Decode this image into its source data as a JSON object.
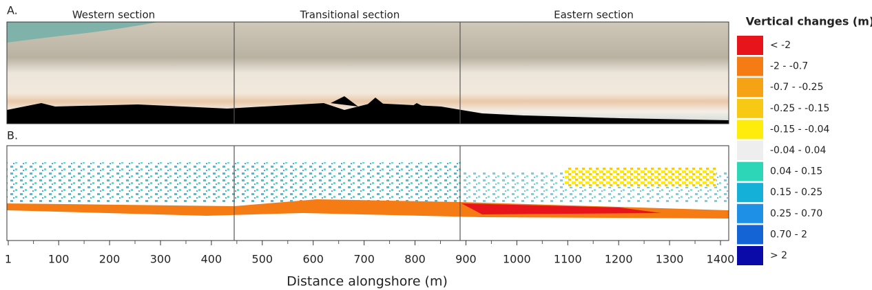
{
  "panels": [
    {
      "label": "A.",
      "sections": [
        "Western section",
        "Transitional section",
        "Eastern section"
      ]
    },
    {
      "label": "B."
    }
  ],
  "axis": {
    "title": "Distance alongshore (m)",
    "ticks": [
      1,
      100,
      200,
      300,
      400,
      500,
      600,
      700,
      800,
      900,
      1000,
      1100,
      1200,
      1300,
      1400
    ]
  },
  "legend": {
    "title": "Vertical changes (m)",
    "items": [
      {
        "label": "< -2",
        "color": "#e8141c"
      },
      {
        "label": "-2 - -0.7",
        "color": "#f57c14"
      },
      {
        "label": "-0.7 - -0.25",
        "color": "#f5a314"
      },
      {
        "label": "-0.25 - -0.15",
        "color": "#f7c814"
      },
      {
        "label": "-0.15 - -0.04",
        "color": "#fdec0c"
      },
      {
        "label": "-0.04 - 0.04",
        "color": "#eeeeee"
      },
      {
        "label": "0.04 - 0.15",
        "color": "#2ed6b8"
      },
      {
        "label": "0.15 - 0.25",
        "color": "#14b0d8"
      },
      {
        "label": "0.25 - 0.70",
        "color": "#1e90e6"
      },
      {
        "label": "0.70 - 2",
        "color": "#1464d6"
      },
      {
        "label": "> 2",
        "color": "#0a0aa8"
      }
    ]
  }
}
